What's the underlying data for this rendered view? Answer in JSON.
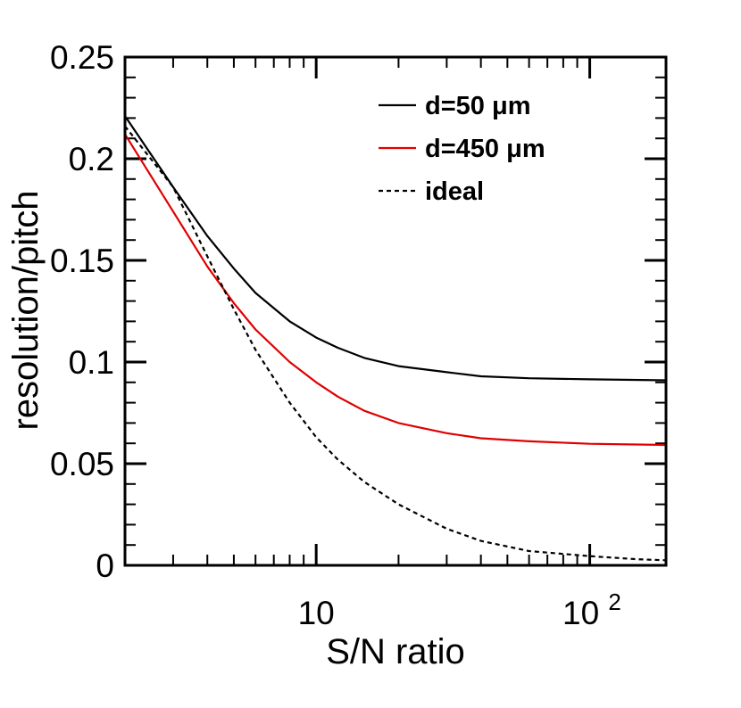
{
  "chart_data": {
    "type": "line",
    "title": "",
    "xlabel": "S/N ratio",
    "ylabel": "resolution/pitch",
    "xscale": "log",
    "xlim": [
      2,
      190
    ],
    "ylim": [
      0,
      0.25
    ],
    "y_ticks": [
      {
        "value": 0,
        "label": "0"
      },
      {
        "value": 0.05,
        "label": "0.05"
      },
      {
        "value": 0.1,
        "label": "0.1"
      },
      {
        "value": 0.15,
        "label": "0.15"
      },
      {
        "value": 0.2,
        "label": "0.2"
      },
      {
        "value": 0.25,
        "label": "0.25"
      }
    ],
    "x_ticks": [
      {
        "value": 10,
        "base": "10",
        "exp": ""
      },
      {
        "value": 100,
        "base": "10",
        "exp": "2"
      }
    ],
    "legend_position": "top-right",
    "series": [
      {
        "name": "d=50 ",
        "unit": "μm",
        "color": "#000000",
        "dash": "solid",
        "x": [
          2,
          3,
          4,
          5,
          6,
          8,
          10,
          12,
          15,
          20,
          30,
          40,
          60,
          100,
          190
        ],
        "y": [
          0.221,
          0.186,
          0.162,
          0.146,
          0.134,
          0.12,
          0.112,
          0.107,
          0.102,
          0.098,
          0.095,
          0.093,
          0.092,
          0.0915,
          0.091
        ]
      },
      {
        "name": "d=450 ",
        "unit": "μm",
        "color": "#e00000",
        "dash": "solid",
        "x": [
          2,
          3,
          4,
          5,
          6,
          8,
          10,
          12,
          15,
          20,
          30,
          40,
          60,
          100,
          190
        ],
        "y": [
          0.212,
          0.174,
          0.147,
          0.129,
          0.116,
          0.1,
          0.09,
          0.083,
          0.076,
          0.07,
          0.065,
          0.0625,
          0.061,
          0.0598,
          0.0592
        ]
      },
      {
        "name": "ideal",
        "unit": "",
        "color": "#000000",
        "dash": "dashed",
        "x": [
          2,
          3,
          4,
          5,
          6,
          8,
          10,
          12,
          15,
          20,
          30,
          40,
          60,
          100,
          150,
          190
        ],
        "y": [
          0.216,
          0.186,
          0.152,
          0.126,
          0.106,
          0.08,
          0.063,
          0.052,
          0.041,
          0.03,
          0.018,
          0.012,
          0.007,
          0.0045,
          0.003,
          0.0025
        ]
      }
    ]
  }
}
